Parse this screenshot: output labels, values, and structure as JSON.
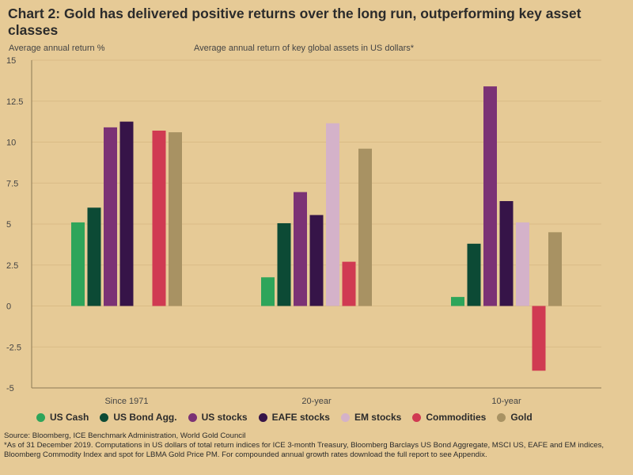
{
  "header": {
    "title": "Chart 2: Gold has delivered positive returns over the long run, outperforming key asset classes",
    "subtitle": "Average annual return of key global assets in US dollars*"
  },
  "chart_data": {
    "type": "bar",
    "ylabel": "Average annual return %",
    "xlabel": "",
    "ylim": [
      -5,
      15
    ],
    "yticks": [
      "-5",
      "-2.5",
      "0",
      "2.5",
      "5",
      "7.5",
      "10",
      "12.5",
      "15"
    ],
    "grid": true,
    "legend_position": "bottom",
    "categories": [
      "Since 1971",
      "20-year",
      "10-year"
    ],
    "series": [
      {
        "name": "US Cash",
        "color": "#2ea55a",
        "values": [
          5.1,
          1.75,
          0.55
        ]
      },
      {
        "name": "US Bond Agg.",
        "color": "#0c4a35",
        "values": [
          6.0,
          5.05,
          3.8
        ]
      },
      {
        "name": "US stocks",
        "color": "#7b3275",
        "values": [
          10.9,
          6.95,
          13.4
        ]
      },
      {
        "name": "EAFE stocks",
        "color": "#361448",
        "values": [
          11.25,
          5.55,
          6.4
        ]
      },
      {
        "name": "EM stocks",
        "color": "#d4b2c9",
        "values": [
          null,
          11.15,
          5.1
        ]
      },
      {
        "name": "Commodities",
        "color": "#d03a52",
        "values": [
          10.7,
          2.7,
          -3.95
        ]
      },
      {
        "name": "Gold",
        "color": "#a89263",
        "values": [
          10.6,
          9.6,
          4.5
        ]
      }
    ]
  },
  "footer": {
    "source": "Source: Bloomberg, ICE Benchmark Administration, World Gold Council",
    "note": "*As of 31 December 2019. Computations in US dollars of total return indices for ICE 3-month Treasury, Bloomberg Barclays US Bond Aggregate, MSCI US, EAFE and EM indices, Bloomberg Commodity Index and spot for LBMA Gold Price PM. For compounded annual growth rates download the full report to see Appendix."
  }
}
